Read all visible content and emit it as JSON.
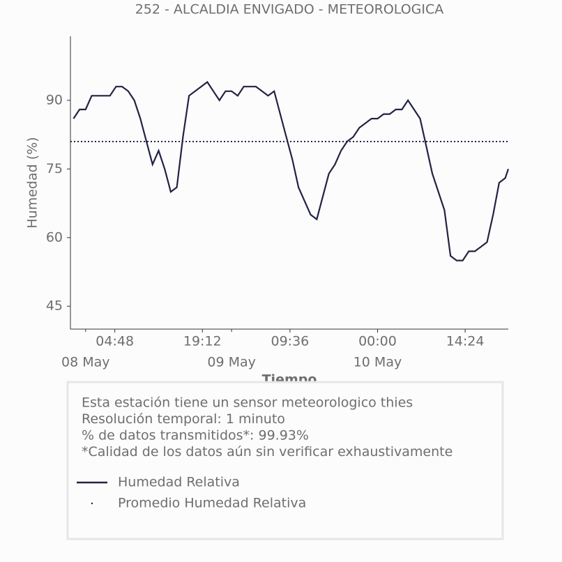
{
  "chart_data": {
    "type": "line",
    "title": "252 - ALCALDIA ENVIGADO - METEOROLOGICA",
    "xlabel": "Tiempo",
    "ylabel": "Humedad (%)",
    "x": [
      "07 May 22:00",
      "07 May 23:00",
      "08 May 00:00",
      "08 May 01:00",
      "08 May 02:00",
      "08 May 03:00",
      "08 May 04:00",
      "08 May 05:00",
      "08 May 06:00",
      "08 May 07:00",
      "08 May 08:00",
      "08 May 09:00",
      "08 May 10:00",
      "08 May 11:00",
      "08 May 12:00",
      "08 May 13:00",
      "08 May 14:00",
      "08 May 15:00",
      "08 May 16:00",
      "08 May 17:00",
      "08 May 18:00",
      "08 May 19:00",
      "08 May 20:00",
      "08 May 21:00",
      "08 May 22:00",
      "08 May 23:00",
      "09 May 00:00",
      "09 May 01:00",
      "09 May 02:00",
      "09 May 03:00",
      "09 May 04:00",
      "09 May 05:00",
      "09 May 06:00",
      "09 May 07:00",
      "09 May 08:00",
      "09 May 09:00",
      "09 May 10:00",
      "09 May 11:00",
      "09 May 12:00",
      "09 May 13:00",
      "09 May 14:00",
      "09 May 15:00",
      "09 May 16:00",
      "09 May 17:00",
      "09 May 18:00",
      "09 May 19:00",
      "09 May 20:00",
      "09 May 21:00",
      "09 May 22:00",
      "09 May 23:00",
      "10 May 00:00",
      "10 May 01:00",
      "10 May 02:00",
      "10 May 03:00",
      "10 May 04:00",
      "10 May 05:00",
      "10 May 06:00",
      "10 May 07:00",
      "10 May 08:00",
      "10 May 09:00",
      "10 May 10:00",
      "10 May 11:00",
      "10 May 12:00",
      "10 May 13:00",
      "10 May 14:00",
      "10 May 15:00",
      "10 May 16:00",
      "10 May 17:00",
      "10 May 18:00",
      "10 May 19:00",
      "10 May 20:00",
      "10 May 21:00",
      "10 May 21:30"
    ],
    "series": [
      {
        "name": "Humedad Relativa",
        "color": "#222244",
        "values": [
          86,
          88,
          88,
          91,
          91,
          91,
          91,
          93,
          93,
          92,
          90,
          86,
          81,
          76,
          79,
          75,
          70,
          71,
          82,
          91,
          92,
          93,
          94,
          92,
          90,
          92,
          92,
          91,
          93,
          93,
          93,
          92,
          91,
          92,
          87,
          82,
          77,
          71,
          68,
          65,
          64,
          69,
          74,
          76,
          79,
          81,
          82,
          84,
          85,
          86,
          86,
          87,
          87,
          88,
          88,
          90,
          88,
          86,
          80,
          74,
          70,
          66,
          56,
          55,
          55,
          57,
          57,
          58,
          59,
          65,
          72,
          73,
          75
        ]
      },
      {
        "name": "Promedio Humedad Relativa",
        "color": "#222244",
        "value": 81,
        "style": "dotted"
      }
    ],
    "xlim": [
      "07 May 21:30",
      "10 May 21:30"
    ],
    "xticks": [
      {
        "value": "08 May 04:48",
        "label": "04:48"
      },
      {
        "value": "08 May 19:12",
        "label": "19:12"
      },
      {
        "value": "09 May 09:36",
        "label": "09:36"
      },
      {
        "value": "10 May 00:00",
        "label": "00:00"
      },
      {
        "value": "10 May 14:24",
        "label": "14:24"
      }
    ],
    "xticks_minor": [
      {
        "value": "08 May 00:00",
        "label": "08 May"
      },
      {
        "value": "09 May 00:00",
        "label": "09 May"
      },
      {
        "value": "10 May 00:00",
        "label": "10 May"
      }
    ],
    "ylim": [
      40,
      104
    ],
    "yticks": [
      45,
      60,
      75,
      90
    ],
    "notes": [
      "Esta estación tiene un sensor meteorologico thies",
      "Resolución temporal: 1 minuto",
      "% de datos transmitidos*: 99.93%",
      "*Calidad de los datos aún sin verificar exhaustivamente"
    ]
  }
}
